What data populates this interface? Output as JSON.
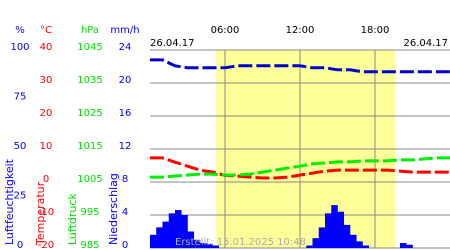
{
  "chart_data": {
    "type": "line",
    "dates": [
      "26.04.17",
      "26.04.17"
    ],
    "footer": "Erstellt: 15.01.2025 10:48",
    "xlim": [
      0,
      24
    ],
    "xticks": [
      {
        "value": 6,
        "label": "06:00"
      },
      {
        "value": 12,
        "label": "12:00"
      },
      {
        "value": 18,
        "label": "18:00"
      }
    ],
    "grid": true,
    "daylight": [
      5.3,
      19.6
    ],
    "daylight_color": "#ffff99",
    "axes": [
      {
        "unit": "%",
        "title": "Luftfeuchtigkeit",
        "color": "#0000ff",
        "ylim": [
          0,
          100
        ],
        "yticks": [
          0,
          25,
          50,
          75,
          100
        ]
      },
      {
        "unit": "°C",
        "title": "Temperatur",
        "color": "#ff0000",
        "ylim": [
          -20,
          40
        ],
        "yticks": [
          -20,
          -10,
          0,
          10,
          20,
          30,
          40
        ]
      },
      {
        "unit": "hPa",
        "title": "Luftdruck",
        "color": "#00dd00",
        "ylim": [
          985,
          1045
        ],
        "yticks": [
          985,
          995,
          1005,
          1015,
          1025,
          1035,
          1045
        ]
      },
      {
        "unit": "mm/h",
        "title": "Niederschlag",
        "color": "#0000ff",
        "ylim": [
          0,
          24
        ],
        "yticks": [
          0,
          4,
          8,
          12,
          16,
          20,
          24
        ]
      }
    ],
    "series": [
      {
        "type": "bar",
        "axis": 3,
        "color": "#0000ff",
        "x": [
          0,
          0.5,
          1,
          1.5,
          2,
          2.5,
          3,
          3.5,
          4,
          4.5,
          5,
          5.5,
          6,
          6.5,
          7,
          7.5,
          8,
          8.5,
          9,
          9.5,
          10,
          10.5,
          11,
          11.5,
          12,
          12.5,
          13,
          13.5,
          14,
          14.5,
          15,
          15.5,
          16,
          16.5,
          17,
          17.5,
          18,
          18.5,
          19,
          19.5,
          20,
          20.5,
          21,
          21.5,
          22,
          22.5,
          23,
          23.5
        ],
        "values": [
          1.6,
          2.5,
          3.2,
          4.2,
          4.6,
          4,
          2,
          1,
          0.6,
          0.5,
          0.3,
          0,
          0,
          0,
          0,
          0,
          0,
          0,
          0,
          0,
          0,
          0,
          0,
          0,
          0,
          0.3,
          1.2,
          2.5,
          4.2,
          5.2,
          4.4,
          2.8,
          1.6,
          0.8,
          0.3,
          0,
          0,
          0,
          0,
          0,
          0.6,
          0.4,
          0,
          0,
          0,
          0,
          0,
          0
        ]
      },
      {
        "type": "line",
        "axis": 0,
        "color": "#0000cc",
        "x": [
          0,
          1,
          2,
          3,
          4,
          5,
          6,
          7,
          8,
          9,
          10,
          11,
          12,
          13,
          14,
          15,
          16,
          17,
          18,
          19,
          20,
          21,
          22,
          23,
          24
        ],
        "values": [
          95,
          95,
          92,
          91,
          91,
          91,
          91,
          92,
          92,
          92,
          92,
          92,
          92,
          91,
          91,
          90,
          90,
          89,
          89,
          89,
          89,
          89,
          89,
          89,
          89
        ]
      },
      {
        "type": "line",
        "axis": 1,
        "color": "#ff0000",
        "x": [
          0,
          1,
          2,
          3,
          4,
          5,
          6,
          7,
          8,
          9,
          10,
          11,
          12,
          13,
          14,
          15,
          16,
          17,
          18,
          19,
          20,
          21,
          22,
          23,
          24
        ],
        "values": [
          7.3,
          7.3,
          6,
          4.8,
          3.6,
          3,
          2,
          1.8,
          1.5,
          1.2,
          1.2,
          1.5,
          2.1,
          2.7,
          3.3,
          3.6,
          3.6,
          3.6,
          3.6,
          3.6,
          3.3,
          3,
          3,
          3,
          3
        ]
      },
      {
        "type": "line",
        "axis": 2,
        "color": "#00ee00",
        "x": [
          0,
          1,
          2,
          3,
          4,
          5,
          6,
          7,
          8,
          9,
          10,
          11,
          12,
          13,
          14,
          15,
          16,
          17,
          18,
          19,
          20,
          21,
          22,
          23,
          24
        ],
        "values": [
          1006.5,
          1006.5,
          1006.8,
          1007.1,
          1007.4,
          1007.4,
          1007.1,
          1007.1,
          1007.4,
          1008,
          1008.6,
          1009.2,
          1009.8,
          1010.5,
          1010.8,
          1011.1,
          1011.1,
          1011.4,
          1011.4,
          1011.4,
          1011.7,
          1011.7,
          1012,
          1012.3,
          1012.3
        ]
      }
    ]
  }
}
